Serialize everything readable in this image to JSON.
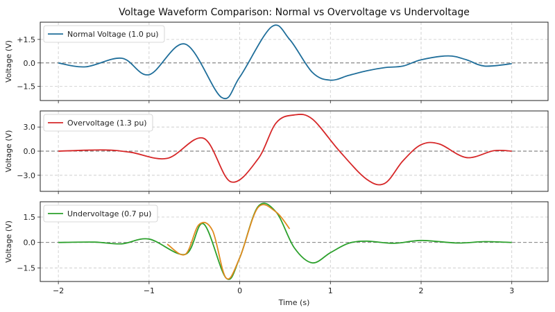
{
  "chart_data": {
    "type": "line",
    "title": "Voltage Waveform Comparison: Normal vs Overvoltage vs Undervoltage",
    "xlabel": "Time (s)",
    "xlim": [
      -2.2,
      3.4
    ],
    "xticks": [
      -2,
      -1,
      0,
      1,
      2,
      3
    ],
    "xtick_labels": [
      "−2",
      "−1",
      "0",
      "1",
      "2",
      "3"
    ],
    "grid": true,
    "panels": [
      {
        "ylabel": "Voltage (V)",
        "ylim": [
          -2.4,
          2.6
        ],
        "yticks": [
          -1.5,
          0,
          1.5
        ],
        "ytick_labels": [
          "−1.5",
          "0.0",
          "+1.5"
        ],
        "legend": "upper-left",
        "series": [
          {
            "name": "Normal Voltage (1.0 pu)",
            "color": "#1f6e9a",
            "x": [
              -2.0,
              -1.7,
              -1.3,
              -1.0,
              -0.6,
              -0.2,
              0.0,
              0.35,
              0.55,
              0.8,
              1.0,
              1.2,
              1.4,
              1.6,
              1.8,
              2.0,
              2.3,
              2.5,
              2.7,
              3.0
            ],
            "y": [
              0.0,
              -0.25,
              0.3,
              -0.75,
              1.2,
              -2.2,
              -0.9,
              2.3,
              1.5,
              -0.6,
              -1.1,
              -0.8,
              -0.5,
              -0.3,
              -0.2,
              0.2,
              0.45,
              0.2,
              -0.2,
              -0.05
            ]
          }
        ]
      },
      {
        "ylabel": "Voltage (V)",
        "ylim": [
          -5.0,
          5.0
        ],
        "yticks": [
          -3.0,
          0,
          3.0
        ],
        "ytick_labels": [
          "−3.0",
          "0.0",
          "3.0"
        ],
        "legend": "upper-left",
        "series": [
          {
            "name": "Overvoltage (1.3 pu)",
            "color": "#d62728",
            "x": [
              -2.0,
              -1.5,
              -1.2,
              -0.8,
              -0.4,
              -0.1,
              0.2,
              0.4,
              0.6,
              0.8,
              1.1,
              1.4,
              1.6,
              1.8,
              2.0,
              2.2,
              2.5,
              2.8,
              3.0
            ],
            "y": [
              0.0,
              0.15,
              -0.15,
              -0.9,
              1.6,
              -3.8,
              -1.0,
              3.5,
              4.5,
              4.0,
              0.0,
              -3.5,
              -4.0,
              -1.2,
              0.8,
              0.9,
              -0.8,
              0.05,
              0.0
            ]
          }
        ]
      },
      {
        "ylabel": "Voltage (V)",
        "ylim": [
          -2.3,
          2.4
        ],
        "yticks": [
          -1.5,
          0,
          1.5
        ],
        "ytick_labels": [
          "−1.5",
          "0.0",
          "1.5"
        ],
        "legend": "upper-left",
        "series": [
          {
            "name": "Undervoltage (0.7 pu)",
            "color": "#2ca02c",
            "x": [
              -2.0,
              -1.6,
              -1.3,
              -1.0,
              -0.6,
              -0.4,
              -0.15,
              0.0,
              0.2,
              0.4,
              0.6,
              0.8,
              1.0,
              1.2,
              1.4,
              1.7,
              2.0,
              2.4,
              2.7,
              3.0
            ],
            "y": [
              0.0,
              0.02,
              -0.08,
              0.2,
              -0.7,
              1.1,
              -2.1,
              -0.9,
              2.1,
              1.8,
              -0.3,
              -1.2,
              -0.6,
              -0.05,
              0.08,
              -0.05,
              0.12,
              -0.03,
              0.05,
              0.0
            ]
          },
          {
            "name": "",
            "color": "#e08a1e",
            "x": [
              -0.8,
              -0.6,
              -0.45,
              -0.3,
              -0.15,
              0.0,
              0.2,
              0.4,
              0.55
            ],
            "y": [
              -0.1,
              -0.7,
              1.05,
              0.7,
              -2.1,
              -0.9,
              2.05,
              1.8,
              0.8
            ]
          }
        ]
      }
    ]
  }
}
